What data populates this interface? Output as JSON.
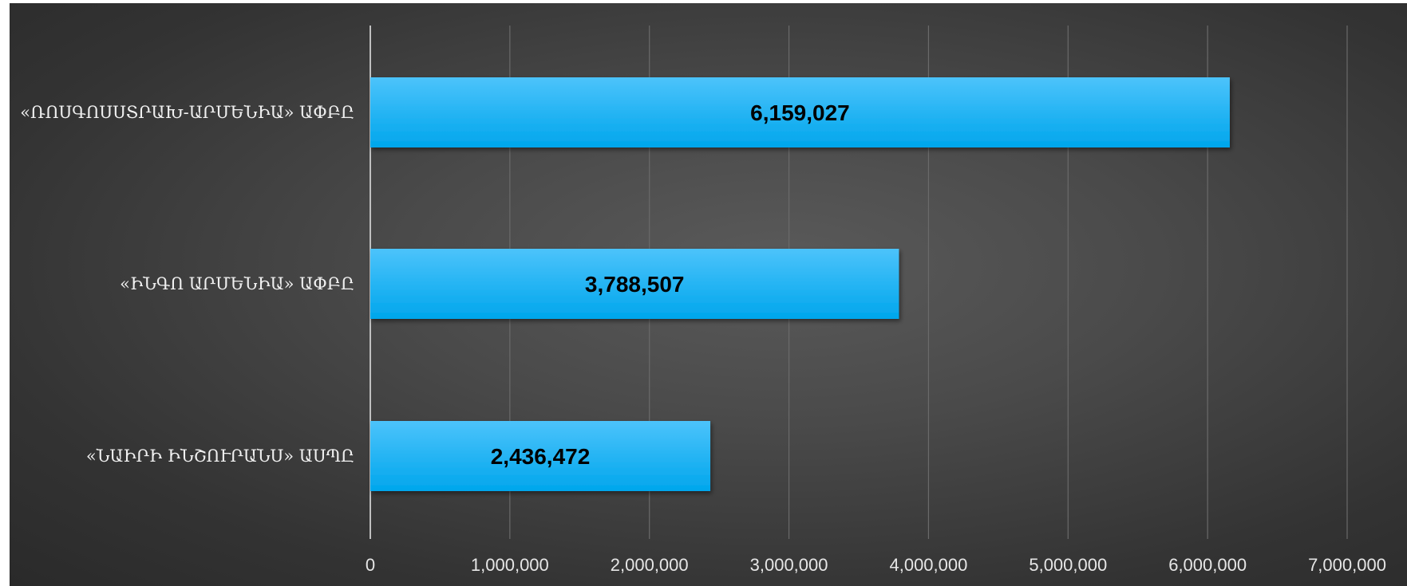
{
  "chart_data": {
    "type": "bar",
    "orientation": "horizontal",
    "categories": [
      "«ՌՈՍԳՈՍՍՏՐԱԽ-ԱՐՄԵՆԻԱ» ԱՓԲԸ",
      "«ԻՆԳՈ ԱՐՄԵՆԻԱ» ԱՓԲԸ",
      "«ՆԱԻՐԻ ԻՆՇՈՒՐԱՆՍ» ԱՍՊԸ"
    ],
    "values": [
      6159027,
      3788507,
      2436472
    ],
    "data_labels": [
      "6,159,027",
      "3,788,507",
      "2,436,472"
    ],
    "xlim": [
      0,
      7000000
    ],
    "xticks": [
      0,
      1000000,
      2000000,
      3000000,
      4000000,
      5000000,
      6000000,
      7000000
    ],
    "xtick_labels": [
      "0",
      "1,000,000",
      "2,000,000",
      "3,000,000",
      "4,000,000",
      "5,000,000",
      "6,000,000",
      "7,000,000"
    ],
    "grid": "vertical",
    "legend": "none",
    "title": "",
    "xlabel": "",
    "ylabel": "",
    "colors": {
      "bar_top": "#4cc3fb",
      "bar_bottom": "#00a6ec",
      "grid": "#6a6a6a",
      "axis": "#bfbfbf"
    }
  }
}
